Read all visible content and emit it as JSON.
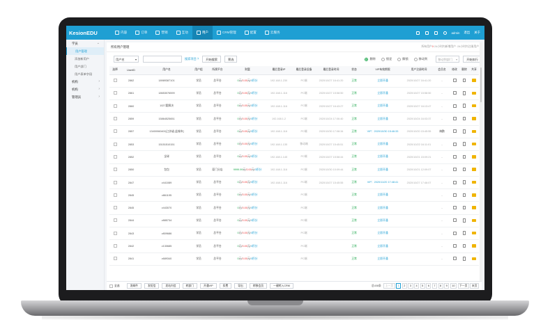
{
  "brand": {
    "prefix": "Kesion",
    "suffix": "EDU"
  },
  "nav": [
    {
      "icon": "home-icon",
      "label": "内容"
    },
    {
      "icon": "order-icon",
      "label": "订单"
    },
    {
      "icon": "tag-icon",
      "label": "营销"
    },
    {
      "icon": "chat-icon",
      "label": "互动"
    },
    {
      "icon": "user-icon",
      "label": "用户"
    },
    {
      "icon": "crm-icon",
      "label": "CRM管理"
    },
    {
      "icon": "gear-icon",
      "label": "配置"
    },
    {
      "icon": "cloud-icon",
      "label": "云服务"
    }
  ],
  "nav_active_index": 4,
  "topright": {
    "user": "admin",
    "logout": "退出",
    "about": "关于"
  },
  "sidebar": [
    {
      "label": "学员",
      "open": true,
      "children": [
        "用户管理",
        "添加新用户",
        "用户部门",
        "用户表单字段"
      ]
    },
    {
      "label": "机构",
      "open": false,
      "children": []
    },
    {
      "label": "机构",
      "open": false,
      "children": []
    },
    {
      "label": "管理员",
      "open": false,
      "children": []
    }
  ],
  "sidebar_active": "用户管理",
  "breadcrumb": {
    "title": "所有用户管理",
    "stats_pre": "所有用户",
    "stats_new": "0",
    "stats_post": "·24小时内新增用户 ·24小时内注册用户"
  },
  "toolbar": {
    "field_select": "用户名",
    "search_value": "",
    "advanced_link": "搜索项目 ?",
    "search_button": "开始搜索",
    "filter_button": "筛选",
    "radios": [
      {
        "label": "删除",
        "on": true
      },
      {
        "label": "锁定",
        "on": false
      },
      {
        "label": "解锁",
        "on": false
      },
      {
        "label": "移动到",
        "on": false
      }
    ],
    "move_select": "移动到部门",
    "execute_button": "开始执行"
  },
  "columns": [
    "选择",
    "UserID",
    "用户名",
    "用户组",
    "所属平台",
    "财富",
    "最后登录IP",
    "最后登录设备",
    "最后登录时间",
    "状态",
    "VIP有效期限",
    "用户注册时间",
    "会员名",
    "修改",
    "删除",
    "共享"
  ],
  "rows": [
    {
      "id": "2862",
      "name": "18989387101",
      "group": "学员",
      "platform": "总平台",
      "m1": "0",
      "m2": "0.00",
      "m3": "0",
      "money_g": false,
      "ip": "192.168.1.230",
      "device": "PC端",
      "login": "2020/10/27 16:41:20",
      "status": "正常",
      "vip": "立即开通",
      "reg": "2020/10/27 16:41:20",
      "member": "-"
    },
    {
      "id": "2861",
      "name": "18653076599",
      "group": "学员",
      "platform": "总平台",
      "m1": "0",
      "m2": "0.00",
      "m3": "0",
      "money_g": false,
      "ip": "192.168.1.116",
      "device": "PC端",
      "login": "2020/10/27 15:58:50",
      "status": "正常",
      "vip": "立即开通",
      "reg": "2020/10/27 15:58:50",
      "member": "-"
    },
    {
      "id": "2860",
      "name": "1027要解决",
      "group": "学员",
      "platform": "总平台",
      "m1": "0",
      "m2": "0.00",
      "m3": "0",
      "money_g": false,
      "ip": "192.168.1.116",
      "device": "PC端",
      "login": "2020/10/27 16:43:27",
      "status": "正常",
      "vip": "立即开通",
      "reg": "2020/10/27 16:13:47",
      "member": "-"
    },
    {
      "id": "2859",
      "name": "15864525651",
      "group": "学员",
      "platform": "总平台",
      "m1": "0",
      "m2": "0.00",
      "m3": "0",
      "money_g": false,
      "ip": "192.168.1.2",
      "device": "PC端",
      "login": "2020/10/24 17:06:40",
      "status": "正常",
      "vip": "立即开通",
      "reg": "2020/10/24 16:03:37",
      "member": "-"
    },
    {
      "id": "2857",
      "name": "13400060400[江苏省,盐城市]",
      "group": "学员",
      "platform": "总平台",
      "m1": "0",
      "m2": "0.00",
      "m3": "0",
      "money_g": false,
      "ip": "192.168.1.116",
      "device": "PC端",
      "login": "2020/10/30 17:08:34",
      "status": "正常",
      "vip": "VIP：2020/10/30 15:46:33",
      "reg": "2020/10/20 15:45:55",
      "member": "梅鹏"
    },
    {
      "id": "2853",
      "name": "15151510151",
      "group": "学员",
      "platform": "总平台",
      "m1": "0",
      "m2": "0.00",
      "m3": "0",
      "money_g": false,
      "ip": "192.168.1.135",
      "device": "移动端",
      "login": "2020/10/27 15:45:51",
      "status": "正常",
      "vip": "立即开通",
      "reg": "2020/10/22 16:11:01",
      "member": "-"
    },
    {
      "id": "2852",
      "name": "全球",
      "group": "学员",
      "platform": "总平台",
      "m1": "0",
      "m2": "0.00",
      "m3": "0",
      "money_g": false,
      "ip": "192.168.1.145",
      "device": "PC端",
      "login": "2020/10/27 15:58:44",
      "status": "正常",
      "vip": "立即开通",
      "reg": "2020/10/21 15:09:21",
      "member": "-"
    },
    {
      "id": "2850",
      "name": "包包",
      "group": "学员",
      "platform": "厦门分店",
      "m1": "9999.99",
      "m2": "0.00",
      "m3": "0",
      "money_g": true,
      "ip": "192.168.1.116",
      "device": "PC端",
      "login": "2020/10/30 10:09:44",
      "status": "正常",
      "vip": "立即开通",
      "reg": "2020/10/21 12:09:07",
      "member": "-"
    },
    {
      "id": "2847",
      "name": "v441089",
      "group": "学员",
      "platform": "总平台",
      "m1": "0",
      "m2": "0.00",
      "m3": "0",
      "money_g": false,
      "ip": "192.168.1.116",
      "device": "PC端",
      "login": "2020/10/27 15:45:55",
      "status": "正常",
      "vip": "VIP：2020/11/20 17:48:41",
      "reg": "2020/10/27 17:46:07",
      "member": "-"
    },
    {
      "id": "2845",
      "name": "v861195",
      "group": "学员",
      "platform": "总平台",
      "m1": "0",
      "m2": "0.00",
      "m3": "0",
      "money_g": false,
      "ip": "",
      "device": "PC端",
      "login": "",
      "status": "正常",
      "vip": "立即开通",
      "reg": "",
      "member": "-"
    },
    {
      "id": "2845",
      "name": "v443070",
      "group": "学员",
      "platform": "总平台",
      "m1": "0",
      "m2": "0.00",
      "m3": "0",
      "money_g": false,
      "ip": "",
      "device": "PC端",
      "login": "",
      "status": "正常",
      "vip": "立即开通",
      "reg": "",
      "member": "-"
    },
    {
      "id": "2844",
      "name": "v885734",
      "group": "学员",
      "platform": "总平台",
      "m1": "0",
      "m2": "0.00",
      "m3": "0",
      "money_g": false,
      "ip": "",
      "device": "PC端",
      "login": "",
      "status": "正常",
      "vip": "立即开通",
      "reg": "",
      "member": "-"
    },
    {
      "id": "2843",
      "name": "v809686",
      "group": "学员",
      "platform": "总平台",
      "m1": "0",
      "m2": "0.00",
      "m3": "0",
      "money_g": false,
      "ip": "",
      "device": "PC端",
      "login": "",
      "status": "正常",
      "vip": "立即开通",
      "reg": "",
      "member": "-"
    },
    {
      "id": "2842",
      "name": "v130685",
      "group": "学员",
      "platform": "总平台",
      "m1": "0",
      "m2": "0.00",
      "m3": "0",
      "money_g": false,
      "ip": "",
      "device": "PC端",
      "login": "",
      "status": "正常",
      "vip": "立即开通",
      "reg": "",
      "member": "-"
    },
    {
      "id": "2841",
      "name": "v689340",
      "group": "学员",
      "platform": "总平台",
      "m1": "0",
      "m2": "0.00",
      "m3": "0",
      "money_g": false,
      "ip": "",
      "device": "PC端",
      "login": "",
      "status": "正常",
      "vip": "立即开通",
      "reg": "",
      "member": "-"
    }
  ],
  "money_units": {
    "a": "元",
    "b": "积分"
  },
  "footer": {
    "select_all": "全选",
    "buttons": [
      "发邮件",
      "发短信",
      "发站内信",
      "转部门",
      "开通VIP",
      "扣费",
      "导出",
      "转移会员",
      "一键转入CRM"
    ],
    "total": "总408条",
    "prev": "上一页",
    "pages": [
      "1",
      "2",
      "3",
      "4",
      "5",
      "6",
      "7",
      "8",
      "9",
      "10"
    ],
    "active_page": "1",
    "next": "下一页",
    "last": "末页"
  }
}
